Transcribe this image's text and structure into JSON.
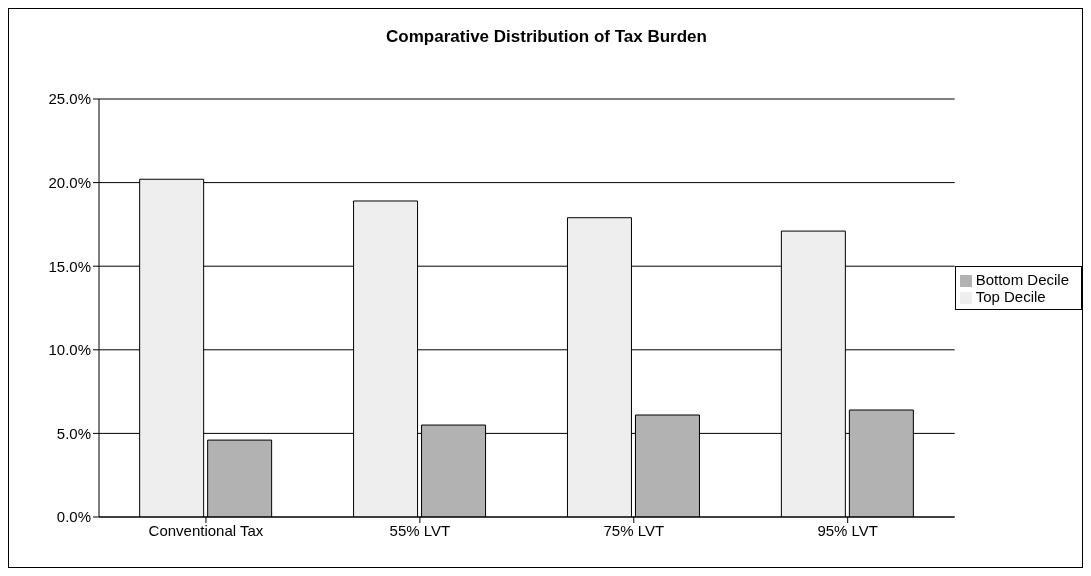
{
  "chart_data": {
    "type": "bar",
    "title": "Comparative Distribution of Tax Burden",
    "categories": [
      "Conventional Tax",
      "55% LVT",
      "75% LVT",
      "95% LVT"
    ],
    "series": [
      {
        "name": "Top Decile",
        "color": "#eeeeee",
        "values": [
          20.2,
          18.9,
          17.9,
          17.1
        ]
      },
      {
        "name": "Bottom Decile",
        "color": "#b2b2b2",
        "values": [
          4.6,
          5.5,
          6.1,
          6.4
        ]
      }
    ],
    "ylim": [
      0,
      25
    ],
    "yticks": [
      {
        "value": 0,
        "label": "0.0%"
      },
      {
        "value": 5,
        "label": "5.0%"
      },
      {
        "value": 10,
        "label": "10.0%"
      },
      {
        "value": 15,
        "label": "15.0%"
      },
      {
        "value": 20,
        "label": "20.0%"
      },
      {
        "value": 25,
        "label": "25.0%"
      }
    ],
    "grid": "y",
    "legend": "right"
  }
}
